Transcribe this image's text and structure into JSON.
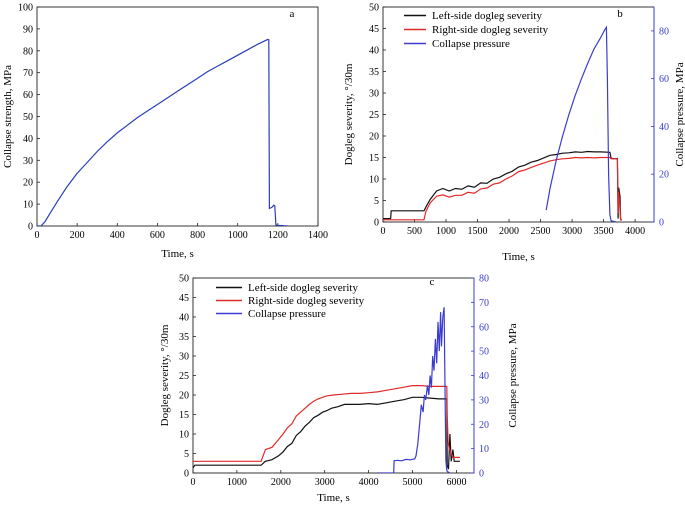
{
  "chart_data": [
    {
      "panel": "a",
      "type": "line",
      "xlabel": "Time, s",
      "ylabel": "Collapse strength, MPa",
      "xlim": [
        0,
        1400
      ],
      "ylim": [
        0,
        100
      ],
      "xticks": [
        0,
        200,
        400,
        600,
        800,
        1000,
        1200,
        1400
      ],
      "yticks": [
        0,
        10,
        20,
        30,
        40,
        50,
        60,
        70,
        80,
        90,
        100
      ],
      "grid": false,
      "series": [
        {
          "color": "#2a3fb5",
          "points": [
            [
              0,
              0
            ],
            [
              20,
              0
            ],
            [
              40,
              2
            ],
            [
              60,
              5
            ],
            [
              100,
              11
            ],
            [
              150,
              18
            ],
            [
              200,
              24
            ],
            [
              250,
              29
            ],
            [
              300,
              34
            ],
            [
              350,
              38.5
            ],
            [
              400,
              42.5
            ],
            [
              450,
              46
            ],
            [
              500,
              49.5
            ],
            [
              550,
              52.5
            ],
            [
              600,
              55.5
            ],
            [
              650,
              58.5
            ],
            [
              700,
              61.5
            ],
            [
              750,
              64.5
            ],
            [
              800,
              67.5
            ],
            [
              850,
              70.5
            ],
            [
              900,
              73
            ],
            [
              950,
              75.5
            ],
            [
              1000,
              78
            ],
            [
              1050,
              80.5
            ],
            [
              1100,
              83
            ],
            [
              1150,
              85.2
            ],
            [
              1155,
              85
            ],
            [
              1158,
              8
            ],
            [
              1170,
              8.5
            ],
            [
              1180,
              9.5
            ],
            [
              1185,
              9.2
            ],
            [
              1190,
              0.5
            ],
            [
              1200,
              0.3
            ],
            [
              1250,
              0
            ]
          ]
        }
      ]
    },
    {
      "panel": "b",
      "type": "line",
      "xlabel": "Time, s",
      "ylabel": "Dogleg severity, °/30m",
      "y2label": "Collapse pressure, MPa",
      "xlim": [
        0,
        4300
      ],
      "ylim": [
        0,
        50
      ],
      "y2lim": [
        0,
        90
      ],
      "xticks": [
        0,
        500,
        1000,
        1500,
        2000,
        2500,
        3000,
        3500,
        4000
      ],
      "yticks": [
        0,
        5,
        10,
        15,
        20,
        25,
        30,
        35,
        40,
        45,
        50
      ],
      "y2ticks": [
        0,
        20,
        40,
        60,
        80
      ],
      "legend_position": "top-left",
      "grid": false,
      "series": [
        {
          "name": "Left-side dogleg severity",
          "color": "#111111",
          "axis": "left",
          "points": [
            [
              0,
              0.8
            ],
            [
              120,
              0.8
            ],
            [
              130,
              2.6
            ],
            [
              650,
              2.6
            ],
            [
              700,
              4
            ],
            [
              750,
              5.3
            ],
            [
              850,
              7.2
            ],
            [
              950,
              7.8
            ],
            [
              1050,
              7.2
            ],
            [
              1150,
              7.8
            ],
            [
              1250,
              7.6
            ],
            [
              1350,
              8.4
            ],
            [
              1450,
              8.1
            ],
            [
              1550,
              9.1
            ],
            [
              1650,
              9
            ],
            [
              1750,
              10
            ],
            [
              1850,
              10.4
            ],
            [
              1950,
              11.2
            ],
            [
              2050,
              11.8
            ],
            [
              2150,
              12.8
            ],
            [
              2250,
              13.2
            ],
            [
              2350,
              13.9
            ],
            [
              2450,
              14.3
            ],
            [
              2550,
              14.9
            ],
            [
              2650,
              15.5
            ],
            [
              2750,
              15.7
            ],
            [
              2850,
              16
            ],
            [
              2950,
              16.1
            ],
            [
              3050,
              16.3
            ],
            [
              3150,
              16.2
            ],
            [
              3250,
              16.4
            ],
            [
              3350,
              16.3
            ],
            [
              3450,
              16.3
            ],
            [
              3600,
              16.2
            ],
            [
              3620,
              14.8
            ],
            [
              3700,
              14.7
            ],
            [
              3720,
              14.8
            ],
            [
              3730,
              0.8
            ],
            [
              3740,
              8
            ],
            [
              3760,
              6
            ],
            [
              3770,
              0.5
            ],
            [
              3790,
              0.5
            ]
          ]
        },
        {
          "name": "Right-side dogleg severity",
          "color": "#e02a2a",
          "axis": "left",
          "points": [
            [
              0,
              0.5
            ],
            [
              650,
              0.5
            ],
            [
              680,
              2.5
            ],
            [
              750,
              4.5
            ],
            [
              850,
              6
            ],
            [
              950,
              6.3
            ],
            [
              1050,
              5.8
            ],
            [
              1150,
              6.2
            ],
            [
              1250,
              6.2
            ],
            [
              1350,
              6.9
            ],
            [
              1450,
              6.7
            ],
            [
              1550,
              7.7
            ],
            [
              1650,
              7.9
            ],
            [
              1750,
              8.8
            ],
            [
              1850,
              9.1
            ],
            [
              1950,
              10
            ],
            [
              2050,
              10.7
            ],
            [
              2150,
              11.7
            ],
            [
              2250,
              12.1
            ],
            [
              2350,
              12.7
            ],
            [
              2450,
              13.2
            ],
            [
              2550,
              13.7
            ],
            [
              2650,
              14.2
            ],
            [
              2750,
              14.5
            ],
            [
              2850,
              14.7
            ],
            [
              2950,
              14.8
            ],
            [
              3050,
              15
            ],
            [
              3150,
              14.9
            ],
            [
              3250,
              15
            ],
            [
              3350,
              14.9
            ],
            [
              3450,
              15
            ],
            [
              3600,
              15
            ],
            [
              3620,
              14.7
            ],
            [
              3720,
              14.7
            ],
            [
              3730,
              2
            ],
            [
              3740,
              7
            ],
            [
              3760,
              3
            ],
            [
              3770,
              0.5
            ],
            [
              3790,
              0.5
            ]
          ]
        },
        {
          "name": "Collapse pressure",
          "color": "#3b3bd0",
          "axis": "right",
          "points": [
            [
              2590,
              5
            ],
            [
              2650,
              14
            ],
            [
              2750,
              26
            ],
            [
              2850,
              36
            ],
            [
              2950,
              45
            ],
            [
              3050,
              53
            ],
            [
              3150,
              60
            ],
            [
              3250,
              66.5
            ],
            [
              3350,
              72.5
            ],
            [
              3450,
              77
            ],
            [
              3520,
              80.5
            ],
            [
              3545,
              81.5
            ],
            [
              3560,
              60
            ],
            [
              3580,
              20
            ],
            [
              3600,
              3
            ],
            [
              3620,
              0.5
            ],
            [
              3700,
              0
            ]
          ]
        }
      ]
    },
    {
      "panel": "c",
      "type": "line",
      "xlabel": "Time, s",
      "ylabel": "Dogleg severity, °/30m",
      "y2label": "Collapse pressure, MPa",
      "xlim": [
        0,
        6400
      ],
      "ylim": [
        0,
        50
      ],
      "y2lim": [
        0,
        80
      ],
      "xticks": [
        0,
        1000,
        2000,
        3000,
        4000,
        5000,
        6000
      ],
      "yticks": [
        0,
        5,
        10,
        15,
        20,
        25,
        30,
        35,
        40,
        45,
        50
      ],
      "y2ticks": [
        0,
        10,
        20,
        30,
        40,
        50,
        60,
        70,
        80
      ],
      "legend_position": "top-left",
      "grid": false,
      "series": [
        {
          "name": "Left-side dogleg severity",
          "color": "#111111",
          "axis": "left",
          "points": [
            [
              0,
              1.3
            ],
            [
              40,
              2
            ],
            [
              1550,
              2
            ],
            [
              1650,
              3
            ],
            [
              1800,
              3.4
            ],
            [
              1950,
              4.4
            ],
            [
              2050,
              5.4
            ],
            [
              2150,
              6.8
            ],
            [
              2250,
              7.6
            ],
            [
              2350,
              9.6
            ],
            [
              2450,
              10.6
            ],
            [
              2550,
              12
            ],
            [
              2650,
              13
            ],
            [
              2750,
              14.2
            ],
            [
              2850,
              14.8
            ],
            [
              2950,
              15.6
            ],
            [
              3050,
              16
            ],
            [
              3150,
              16.6
            ],
            [
              3300,
              17
            ],
            [
              3450,
              17.6
            ],
            [
              3600,
              17.6
            ],
            [
              3800,
              17.6
            ],
            [
              4000,
              17.8
            ],
            [
              4200,
              17.6
            ],
            [
              4400,
              18
            ],
            [
              4600,
              18.4
            ],
            [
              4800,
              18.8
            ],
            [
              5000,
              19.4
            ],
            [
              5200,
              19.4
            ],
            [
              5400,
              19.2
            ],
            [
              5600,
              19
            ],
            [
              5780,
              19
            ],
            [
              5790,
              2
            ],
            [
              5820,
              1
            ],
            [
              5850,
              10
            ],
            [
              5880,
              3
            ],
            [
              5920,
              6
            ],
            [
              5950,
              3
            ],
            [
              6000,
              3
            ],
            [
              6080,
              3
            ]
          ]
        },
        {
          "name": "Right-side dogleg severity",
          "color": "#e02a2a",
          "axis": "left",
          "points": [
            [
              0,
              3
            ],
            [
              1550,
              3
            ],
            [
              1650,
              6
            ],
            [
              1800,
              6.6
            ],
            [
              1950,
              8.6
            ],
            [
              2050,
              10
            ],
            [
              2150,
              11.6
            ],
            [
              2250,
              12.6
            ],
            [
              2350,
              14.6
            ],
            [
              2450,
              15.6
            ],
            [
              2550,
              16.6
            ],
            [
              2650,
              17.6
            ],
            [
              2750,
              18.4
            ],
            [
              2850,
              19
            ],
            [
              2950,
              19.4
            ],
            [
              3050,
              19.8
            ],
            [
              3200,
              20
            ],
            [
              3400,
              20.2
            ],
            [
              3600,
              20.4
            ],
            [
              3800,
              20.4
            ],
            [
              4000,
              20.6
            ],
            [
              4200,
              20.8
            ],
            [
              4400,
              21.2
            ],
            [
              4600,
              21.6
            ],
            [
              4800,
              22
            ],
            [
              5000,
              22.4
            ],
            [
              5200,
              22.4
            ],
            [
              5400,
              22.2
            ],
            [
              5600,
              22.2
            ],
            [
              5780,
              22.2
            ],
            [
              5790,
              15
            ],
            [
              5810,
              8
            ],
            [
              5840,
              6
            ],
            [
              5880,
              5
            ],
            [
              5920,
              4
            ],
            [
              5960,
              4
            ],
            [
              6080,
              4
            ]
          ]
        },
        {
          "name": "Collapse pressure",
          "color": "#3b3bd0",
          "axis": "right",
          "points": [
            [
              4200,
              0
            ],
            [
              4570,
              0
            ],
            [
              4580,
              5
            ],
            [
              4650,
              5.2
            ],
            [
              4750,
              5
            ],
            [
              4850,
              5.6
            ],
            [
              4950,
              5.4
            ],
            [
              5050,
              5.8
            ],
            [
              5080,
              7
            ],
            [
              5120,
              12
            ],
            [
              5160,
              20
            ],
            [
              5200,
              28
            ],
            [
              5240,
              25
            ],
            [
              5270,
              32
            ],
            [
              5300,
              30
            ],
            [
              5340,
              36
            ],
            [
              5370,
              32
            ],
            [
              5400,
              40
            ],
            [
              5430,
              35
            ],
            [
              5460,
              48
            ],
            [
              5490,
              42
            ],
            [
              5520,
              55
            ],
            [
              5550,
              45
            ],
            [
              5580,
              62
            ],
            [
              5610,
              50
            ],
            [
              5640,
              66
            ],
            [
              5660,
              52
            ],
            [
              5690,
              64
            ],
            [
              5720,
              68
            ],
            [
              5740,
              35
            ],
            [
              5760,
              5
            ],
            [
              5780,
              1
            ],
            [
              5800,
              0.5
            ],
            [
              5850,
              0
            ]
          ]
        }
      ]
    }
  ]
}
